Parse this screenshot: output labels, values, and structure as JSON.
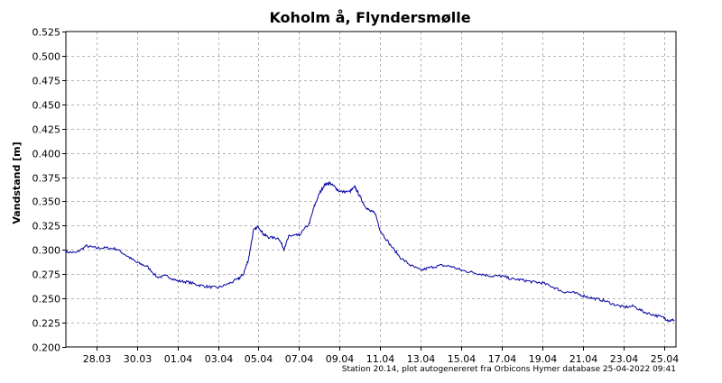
{
  "chart_data": {
    "type": "line",
    "title": "Koholm å, Flyndersmølle",
    "xlabel": "",
    "ylabel": "Vandstand [m]",
    "ylim": [
      0.2,
      0.525
    ],
    "yticks": [
      "0.200",
      "0.225",
      "0.250",
      "0.275",
      "0.300",
      "0.325",
      "0.350",
      "0.375",
      "0.400",
      "0.425",
      "0.450",
      "0.475",
      "0.500",
      "0.525"
    ],
    "xlim": [
      "26.03.2022 12:00",
      "25.04.2022 14:00"
    ],
    "xticks": [
      {
        "label": "28.03",
        "date": "28.03.2022"
      },
      {
        "label": "30.03",
        "date": "30.03.2022"
      },
      {
        "label": "01.04",
        "date": "01.04.2022"
      },
      {
        "label": "03.04",
        "date": "03.04.2022"
      },
      {
        "label": "05.04",
        "date": "05.04.2022"
      },
      {
        "label": "07.04",
        "date": "07.04.2022"
      },
      {
        "label": "09.04",
        "date": "09.04.2022"
      },
      {
        "label": "11.04",
        "date": "11.04.2022"
      },
      {
        "label": "13.04",
        "date": "13.04.2022"
      },
      {
        "label": "15.04",
        "date": "15.04.2022"
      },
      {
        "label": "17.04",
        "date": "17.04.2022"
      },
      {
        "label": "19.04",
        "date": "19.04.2022"
      },
      {
        "label": "21.04",
        "date": "21.04.2022"
      },
      {
        "label": "23.04",
        "date": "23.04.2022"
      },
      {
        "label": "25.04",
        "date": "25.04.2022"
      }
    ],
    "grid": true,
    "line_color": "#0000a0",
    "series": [
      {
        "x": [
          "26.03.2022 12:00",
          "27.03.2022 00:00",
          "27.03.2022 12:00",
          "28.03.2022 00:00",
          "28.03.2022 12:00",
          "29.03.2022 00:00",
          "29.03.2022 12:00",
          "30.03.2022 00:00",
          "30.03.2022 12:00",
          "31.03.2022 00:00",
          "31.03.2022 12:00",
          "01.04.2022 00:00",
          "01.04.2022 12:00",
          "02.04.2022 00:00",
          "02.04.2022 12:00",
          "03.04.2022 00:00",
          "03.04.2022 12:00",
          "04.04.2022 00:00",
          "04.04.2022 06:00",
          "04.04.2022 12:00",
          "04.04.2022 18:00",
          "05.04.2022 00:00",
          "05.04.2022 06:00",
          "05.04.2022 12:00",
          "06.04.2022 00:00",
          "06.04.2022 06:00",
          "06.04.2022 12:00",
          "06.04.2022 18:00",
          "07.04.2022 00:00",
          "07.04.2022 12:00",
          "07.04.2022 18:00",
          "08.04.2022 00:00",
          "08.04.2022 06:00",
          "08.04.2022 12:00",
          "08.04.2022 18:00",
          "09.04.2022 00:00",
          "09.04.2022 12:00",
          "09.04.2022 18:00",
          "10.04.2022 00:00",
          "10.04.2022 06:00",
          "10.04.2022 12:00",
          "10.04.2022 18:00",
          "11.04.2022 00:00",
          "11.04.2022 12:00",
          "12.04.2022 00:00",
          "12.04.2022 12:00",
          "13.04.2022 00:00",
          "13.04.2022 12:00",
          "14.04.2022 00:00",
          "14.04.2022 12:00",
          "15.04.2022 00:00",
          "15.04.2022 12:00",
          "16.04.2022 00:00",
          "16.04.2022 12:00",
          "17.04.2022 00:00",
          "17.04.2022 12:00",
          "18.04.2022 00:00",
          "18.04.2022 12:00",
          "19.04.2022 00:00",
          "19.04.2022 12:00",
          "20.04.2022 00:00",
          "20.04.2022 12:00",
          "21.04.2022 00:00",
          "21.04.2022 12:00",
          "22.04.2022 00:00",
          "22.04.2022 12:00",
          "23.04.2022 00:00",
          "23.04.2022 12:00",
          "24.04.2022 00:00",
          "24.04.2022 12:00",
          "25.04.2022 00:00",
          "25.04.2022 06:00",
          "25.04.2022 12:00"
        ],
        "values": [
          0.298,
          0.297,
          0.304,
          0.302,
          0.302,
          0.301,
          0.294,
          0.287,
          0.283,
          0.272,
          0.273,
          0.268,
          0.267,
          0.264,
          0.262,
          0.261,
          0.265,
          0.27,
          0.275,
          0.29,
          0.32,
          0.324,
          0.316,
          0.313,
          0.312,
          0.301,
          0.314,
          0.315,
          0.315,
          0.327,
          0.345,
          0.358,
          0.367,
          0.369,
          0.365,
          0.36,
          0.36,
          0.365,
          0.355,
          0.345,
          0.34,
          0.338,
          0.32,
          0.305,
          0.292,
          0.284,
          0.279,
          0.282,
          0.284,
          0.283,
          0.279,
          0.277,
          0.275,
          0.273,
          0.273,
          0.27,
          0.269,
          0.267,
          0.266,
          0.262,
          0.257,
          0.256,
          0.253,
          0.25,
          0.248,
          0.244,
          0.241,
          0.242,
          0.236,
          0.233,
          0.23,
          0.227,
          0.228
        ]
      }
    ]
  },
  "footer": "Station 20.14, plot autogenereret fra Orbicons Hymer database 25-04-2022 09:41"
}
